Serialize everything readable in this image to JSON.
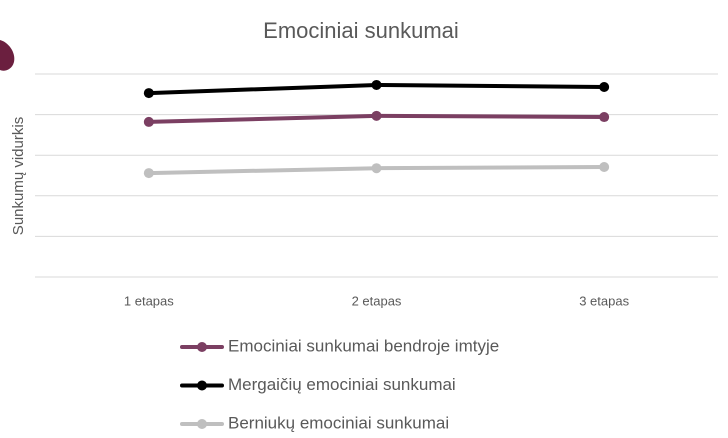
{
  "chart_data": {
    "type": "line",
    "title": "Emociniai sunkumai",
    "y_label": "Sunkumų vidurkis",
    "categories": [
      "1 etapas",
      "2 etapas",
      "3 etapas"
    ],
    "series": [
      {
        "name": "Emociniai sunkumai bendroje imtyje",
        "color": "#7b3f62",
        "values": [
          3.82,
          3.97,
          3.94
        ]
      },
      {
        "name": "Mergaičių emociniai sunkumai",
        "color": "#000000",
        "values": [
          4.53,
          4.73,
          4.68
        ]
      },
      {
        "name": "Berniukų emociniai sunkumai",
        "color": "#bfbfbf",
        "values": [
          2.56,
          2.68,
          2.71
        ]
      }
    ],
    "ylim": [
      0,
      5
    ],
    "yticks": [
      0,
      1,
      2,
      3,
      4,
      5
    ],
    "grid": true,
    "legend": "bottom"
  }
}
